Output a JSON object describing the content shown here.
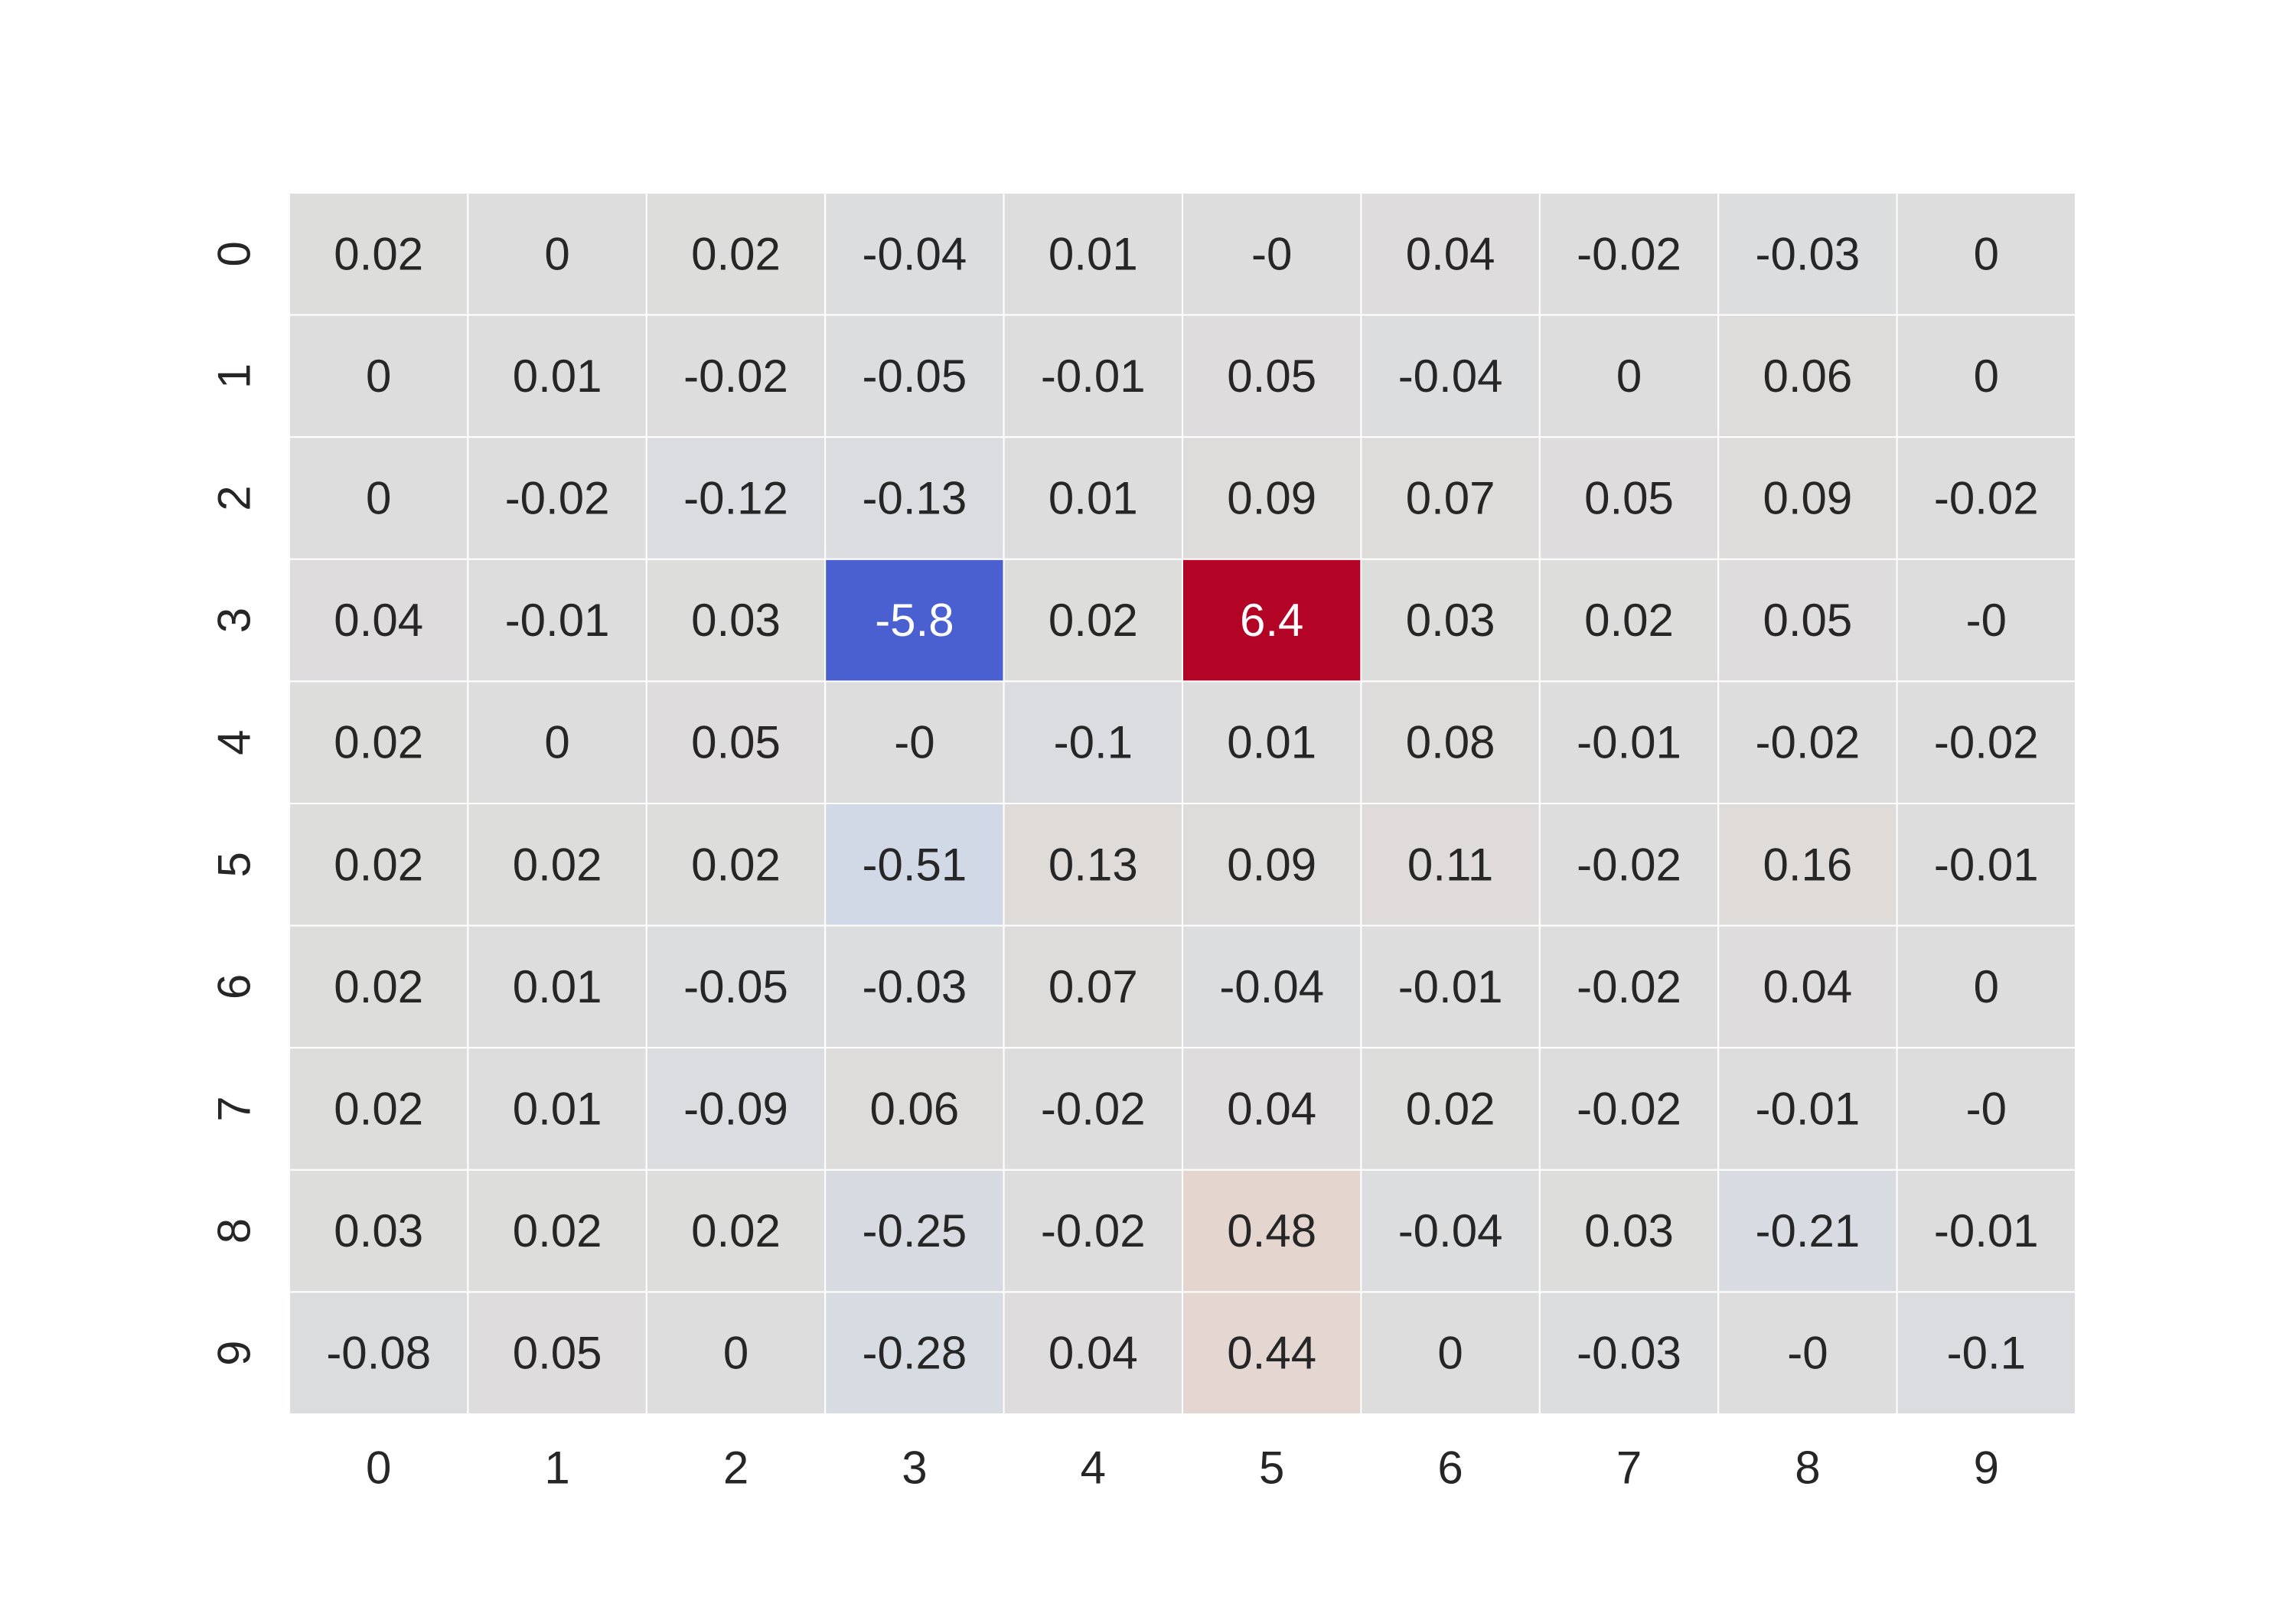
{
  "chart_data": {
    "type": "heatmap",
    "title": "",
    "xlabel": "",
    "ylabel": "",
    "x_categories": [
      "0",
      "1",
      "2",
      "3",
      "4",
      "5",
      "6",
      "7",
      "8",
      "9"
    ],
    "y_categories": [
      "0",
      "1",
      "2",
      "3",
      "4",
      "5",
      "6",
      "7",
      "8",
      "9"
    ],
    "values": [
      [
        0.02,
        0,
        0.02,
        -0.04,
        0.01,
        0,
        0.04,
        -0.02,
        -0.03,
        0
      ],
      [
        0,
        0.01,
        -0.02,
        -0.05,
        -0.01,
        0.05,
        -0.04,
        0,
        0.06,
        0
      ],
      [
        0,
        -0.02,
        -0.12,
        -0.13,
        0.01,
        0.09,
        0.07,
        0.05,
        0.09,
        -0.02
      ],
      [
        0.04,
        -0.01,
        0.03,
        -5.8,
        0.02,
        6.4,
        0.03,
        0.02,
        0.05,
        0
      ],
      [
        0.02,
        0,
        0.05,
        0,
        -0.1,
        0.01,
        0.08,
        -0.01,
        -0.02,
        -0.02
      ],
      [
        0.02,
        0.02,
        0.02,
        -0.51,
        0.13,
        0.09,
        0.11,
        -0.02,
        0.16,
        -0.01
      ],
      [
        0.02,
        0.01,
        -0.05,
        -0.03,
        0.07,
        -0.04,
        -0.01,
        -0.02,
        0.04,
        0
      ],
      [
        0.02,
        0.01,
        -0.09,
        0.06,
        -0.02,
        0.04,
        0.02,
        -0.02,
        -0.01,
        0
      ],
      [
        0.03,
        0.02,
        0.02,
        -0.25,
        -0.02,
        0.48,
        -0.04,
        0.03,
        -0.21,
        -0.01
      ],
      [
        -0.08,
        0.05,
        0,
        -0.28,
        0.04,
        0.44,
        0,
        -0.03,
        0,
        -0.1
      ]
    ],
    "cell_labels": [
      [
        "0.02",
        "0",
        "0.02",
        "-0.04",
        "0.01",
        "-0",
        "0.04",
        "-0.02",
        "-0.03",
        "0"
      ],
      [
        "0",
        "0.01",
        "-0.02",
        "-0.05",
        "-0.01",
        "0.05",
        "-0.04",
        "0",
        "0.06",
        "0"
      ],
      [
        "0",
        "-0.02",
        "-0.12",
        "-0.13",
        "0.01",
        "0.09",
        "0.07",
        "0.05",
        "0.09",
        "-0.02"
      ],
      [
        "0.04",
        "-0.01",
        "0.03",
        "-5.8",
        "0.02",
        "6.4",
        "0.03",
        "0.02",
        "0.05",
        "-0"
      ],
      [
        "0.02",
        "0",
        "0.05",
        "-0",
        "-0.1",
        "0.01",
        "0.08",
        "-0.01",
        "-0.02",
        "-0.02"
      ],
      [
        "0.02",
        "0.02",
        "0.02",
        "-0.51",
        "0.13",
        "0.09",
        "0.11",
        "-0.02",
        "0.16",
        "-0.01"
      ],
      [
        "0.02",
        "0.01",
        "-0.05",
        "-0.03",
        "0.07",
        "-0.04",
        "-0.01",
        "-0.02",
        "0.04",
        "0"
      ],
      [
        "0.02",
        "0.01",
        "-0.09",
        "0.06",
        "-0.02",
        "0.04",
        "0.02",
        "-0.02",
        "-0.01",
        "-0"
      ],
      [
        "0.03",
        "0.02",
        "0.02",
        "-0.25",
        "-0.02",
        "0.48",
        "-0.04",
        "0.03",
        "-0.21",
        "-0.01"
      ],
      [
        "-0.08",
        "0.05",
        "0",
        "-0.28",
        "0.04",
        "0.44",
        "0",
        "-0.03",
        "-0",
        "-0.1"
      ]
    ],
    "colormap": "coolwarm",
    "vmin": -6.4,
    "vmax": 6.4,
    "colorbar": false,
    "grid": false,
    "cell_border_color": "#ffffff",
    "text_color_dark": "#262626",
    "text_color_light": "#ffffff",
    "tick_color": "#262626"
  }
}
